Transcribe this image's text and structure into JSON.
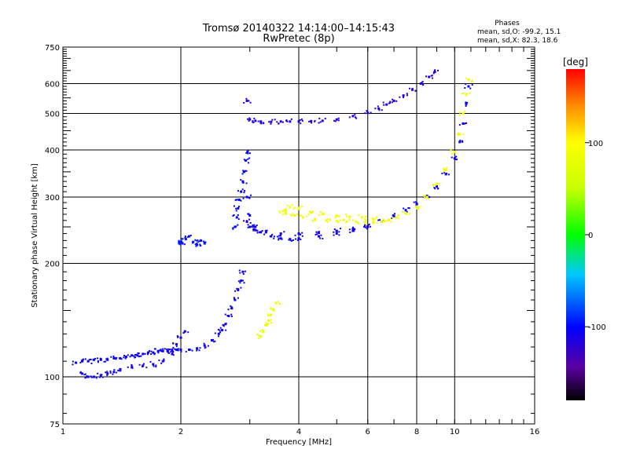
{
  "chart_data": {
    "type": "scatter",
    "title": "Tromsø 20140322 14:14:00–14:15:43",
    "subtitle": "RwPretec (8p)",
    "xlabel": "Frequency [MHz]",
    "ylabel": "Stationary phase Virtual Height [km]",
    "x_scale": "log",
    "y_scale": "log",
    "xlim": [
      1,
      16
    ],
    "ylim": [
      75,
      750
    ],
    "x_ticks": [
      1,
      2,
      4,
      6,
      8,
      10,
      16
    ],
    "y_ticks": [
      75,
      100,
      200,
      300,
      400,
      500,
      600,
      750
    ],
    "grid": true,
    "stats": {
      "heading": "Phases",
      "line_o": "mean, sd,O: -99.2, 15.1",
      "line_x": "mean, sd,X:  82.3, 18.6"
    },
    "colorbar": {
      "label": "[deg]",
      "range": [
        -180,
        180
      ],
      "ticks": [
        100,
        0,
        -100
      ],
      "colormap": "rainbow: black(-180) → purple → blue(-100) → cyan → green(0) → yellow(100) → red(180)"
    },
    "series": [
      {
        "phase_deg": -105,
        "points": [
          [
            1.08,
            109
          ],
          [
            1.12,
            110
          ],
          [
            1.16,
            110
          ],
          [
            1.2,
            111
          ],
          [
            1.25,
            111
          ],
          [
            1.3,
            111
          ],
          [
            1.35,
            112
          ],
          [
            1.4,
            112
          ],
          [
            1.45,
            113
          ],
          [
            1.5,
            114
          ],
          [
            1.55,
            114
          ],
          [
            1.6,
            115
          ],
          [
            1.65,
            116
          ],
          [
            1.7,
            116
          ],
          [
            1.75,
            117
          ],
          [
            1.8,
            117
          ],
          [
            1.85,
            117
          ],
          [
            1.9,
            118
          ],
          [
            1.95,
            118
          ],
          [
            2.0,
            118
          ],
          [
            2.1,
            118
          ],
          [
            2.2,
            119
          ],
          [
            2.3,
            121
          ],
          [
            2.4,
            125
          ],
          [
            2.5,
            130
          ],
          [
            2.55,
            133
          ],
          [
            2.6,
            138
          ],
          [
            2.65,
            145
          ],
          [
            2.7,
            152
          ],
          [
            2.75,
            160
          ],
          [
            2.8,
            170
          ],
          [
            2.85,
            180
          ],
          [
            2.88,
            190
          ]
        ]
      },
      {
        "phase_deg": -110,
        "points": [
          [
            1.12,
            102
          ],
          [
            1.16,
            100
          ],
          [
            1.2,
            100
          ],
          [
            1.25,
            101
          ],
          [
            1.3,
            102
          ],
          [
            1.35,
            103
          ],
          [
            1.4,
            104
          ],
          [
            1.5,
            106
          ],
          [
            1.6,
            107
          ],
          [
            1.7,
            108
          ],
          [
            1.8,
            110
          ],
          [
            1.9,
            115
          ],
          [
            1.95,
            122
          ],
          [
            2.0,
            127
          ],
          [
            2.05,
            132
          ]
        ]
      },
      {
        "phase_deg": -95,
        "points": [
          [
            1.98,
            228
          ],
          [
            2.02,
            226
          ],
          [
            2.06,
            232
          ],
          [
            2.1,
            236
          ],
          [
            2.15,
            228
          ],
          [
            2.2,
            224
          ],
          [
            2.25,
            230
          ],
          [
            2.3,
            226
          ]
        ]
      },
      {
        "phase_deg": -100,
        "points": [
          [
            2.75,
            250
          ],
          [
            2.78,
            265
          ],
          [
            2.8,
            280
          ],
          [
            2.82,
            295
          ],
          [
            2.85,
            310
          ],
          [
            2.88,
            330
          ],
          [
            2.9,
            350
          ],
          [
            2.93,
            375
          ],
          [
            2.96,
            395
          ]
        ]
      },
      {
        "phase_deg": -105,
        "points": [
          [
            2.95,
            300
          ],
          [
            3.0,
            268
          ],
          [
            3.1,
            250
          ],
          [
            3.2,
            242
          ],
          [
            3.4,
            236
          ],
          [
            3.6,
            233
          ],
          [
            3.8,
            232
          ],
          [
            4.0,
            233
          ],
          [
            4.5,
            236
          ],
          [
            5.0,
            240
          ],
          [
            5.5,
            244
          ],
          [
            6.0,
            250
          ],
          [
            6.5,
            258
          ],
          [
            7.0,
            267
          ],
          [
            7.5,
            277
          ],
          [
            8.0,
            288
          ],
          [
            8.5,
            302
          ],
          [
            9.0,
            320
          ],
          [
            9.5,
            345
          ],
          [
            10.0,
            380
          ],
          [
            10.3,
            420
          ],
          [
            10.5,
            470
          ],
          [
            10.7,
            530
          ],
          [
            10.85,
            590
          ]
        ]
      },
      {
        "phase_deg": -110,
        "points": [
          [
            2.95,
            258
          ],
          [
            3.0,
            250
          ],
          [
            3.1,
            245
          ],
          [
            3.3,
            242
          ],
          [
            3.6,
            240
          ],
          [
            4.0,
            240
          ],
          [
            4.5,
            241
          ],
          [
            5.0,
            244
          ],
          [
            5.5,
            247
          ],
          [
            6.0,
            251
          ]
        ]
      },
      {
        "phase_deg": -115,
        "points": [
          [
            2.95,
            540
          ],
          [
            3.0,
            482
          ],
          [
            3.1,
            478
          ],
          [
            3.2,
            476
          ],
          [
            3.4,
            475
          ],
          [
            3.6,
            476
          ],
          [
            3.8,
            476
          ],
          [
            4.0,
            476
          ],
          [
            4.3,
            477
          ],
          [
            4.6,
            478
          ],
          [
            5.0,
            482
          ],
          [
            5.5,
            492
          ],
          [
            6.0,
            502
          ],
          [
            6.4,
            515
          ],
          [
            6.7,
            528
          ],
          [
            7.0,
            540
          ],
          [
            7.4,
            558
          ],
          [
            7.8,
            578
          ],
          [
            8.2,
            600
          ],
          [
            8.6,
            625
          ],
          [
            8.9,
            645
          ]
        ]
      },
      {
        "phase_deg": 85,
        "points": [
          [
            3.7,
            272
          ],
          [
            3.9,
            268
          ],
          [
            4.1,
            265
          ],
          [
            4.4,
            262
          ],
          [
            4.7,
            260
          ],
          [
            5.0,
            259
          ],
          [
            5.3,
            258
          ],
          [
            5.6,
            258
          ],
          [
            5.9,
            257
          ],
          [
            6.2,
            257
          ],
          [
            6.5,
            258
          ],
          [
            6.8,
            261
          ],
          [
            7.1,
            265
          ],
          [
            7.5,
            272
          ],
          [
            8.0,
            283
          ],
          [
            8.5,
            300
          ],
          [
            9.0,
            325
          ],
          [
            9.5,
            355
          ],
          [
            10.0,
            395
          ],
          [
            10.3,
            440
          ],
          [
            10.5,
            500
          ],
          [
            10.7,
            560
          ],
          [
            10.85,
            615
          ]
        ]
      },
      {
        "phase_deg": 90,
        "points": [
          [
            3.65,
            275
          ],
          [
            3.8,
            282
          ],
          [
            4.0,
            279
          ],
          [
            4.3,
            273
          ],
          [
            4.6,
            270
          ],
          [
            5.0,
            268
          ],
          [
            5.4,
            266
          ],
          [
            5.8,
            265
          ],
          [
            6.2,
            262
          ]
        ]
      },
      {
        "phase_deg": 80,
        "points": [
          [
            3.2,
            128
          ],
          [
            3.25,
            132
          ],
          [
            3.3,
            137
          ],
          [
            3.35,
            141
          ],
          [
            3.4,
            146
          ],
          [
            3.45,
            151
          ],
          [
            3.5,
            157
          ]
        ]
      }
    ]
  }
}
